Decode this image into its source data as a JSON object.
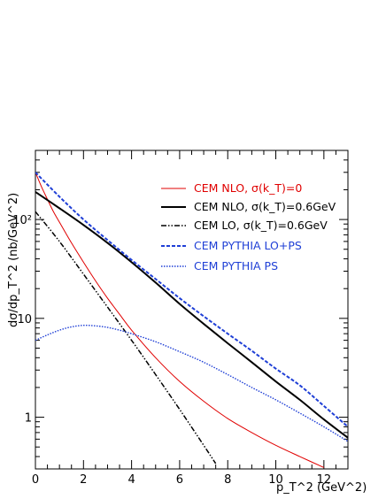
{
  "chart_data": {
    "type": "line",
    "title": "",
    "xlabel": "p_T^2 (GeV^2)",
    "ylabel": "dσ/dp_T^2 (nb/GeV^2)",
    "x_scale": "linear",
    "y_scale": "log",
    "xlim": [
      0,
      13
    ],
    "ylim": [
      0.3,
      500
    ],
    "x_ticks": [
      0,
      2,
      4,
      6,
      8,
      10,
      12
    ],
    "x_tick_labels": [
      "0",
      "2",
      "4",
      "6",
      "8",
      "10",
      "12"
    ],
    "y_ticks": [
      1,
      10,
      100
    ],
    "y_tick_labels": [
      "1",
      "10",
      "10²"
    ],
    "legend_position": "top-right",
    "grid": false,
    "series": [
      {
        "name": "CEM NLO, σ(k_T)=0",
        "color": "#e00000",
        "style": "solid",
        "x": [
          0,
          0.25,
          0.5,
          0.75,
          1,
          1.5,
          2,
          2.5,
          3,
          3.5,
          4,
          5,
          6,
          7,
          8,
          9,
          10,
          11,
          12
        ],
        "y": [
          300,
          215,
          160,
          120,
          94,
          58,
          37,
          24,
          16,
          11,
          7.6,
          4.0,
          2.3,
          1.45,
          0.97,
          0.7,
          0.52,
          0.4,
          0.31
        ]
      },
      {
        "name": "CEM NLO, σ(k_T)=0.6GeV",
        "color": "#000000",
        "style": "solid-thick",
        "x": [
          0,
          1,
          2,
          3,
          4,
          5,
          6,
          7,
          8,
          9,
          10,
          11,
          12,
          13
        ],
        "y": [
          190,
          130,
          88,
          58,
          37,
          23,
          14,
          8.8,
          5.6,
          3.6,
          2.3,
          1.5,
          0.95,
          0.62
        ]
      },
      {
        "name": "CEM LO, σ(k_T)=0.6GeV",
        "color": "#000000",
        "style": "dash-dot",
        "x": [
          0,
          1,
          2,
          3,
          4,
          5,
          6,
          7,
          7.5
        ],
        "y": [
          120,
          60,
          28,
          13,
          6.0,
          2.7,
          1.2,
          0.52,
          0.34
        ]
      },
      {
        "name": "CEM PYTHIA LO+PS",
        "color": "#1f3fd6",
        "style": "dashed",
        "x": [
          0,
          1,
          2,
          3,
          4,
          5,
          6,
          7,
          8,
          9,
          10,
          11,
          12,
          13
        ],
        "y": [
          300,
          170,
          100,
          62,
          39,
          25,
          16,
          10.5,
          7.0,
          4.7,
          3.1,
          2.1,
          1.3,
          0.8
        ]
      },
      {
        "name": "CEM PYTHIA PS",
        "color": "#1f3fd6",
        "style": "dotted",
        "x": [
          0,
          0.5,
          1,
          1.5,
          2,
          2.5,
          3,
          3.5,
          4,
          5,
          6,
          7,
          8,
          9,
          10,
          11,
          12,
          13
        ],
        "y": [
          6.0,
          6.8,
          7.6,
          8.2,
          8.5,
          8.4,
          8.1,
          7.6,
          7.0,
          5.8,
          4.6,
          3.6,
          2.7,
          2.0,
          1.5,
          1.1,
          0.8,
          0.57
        ]
      }
    ]
  }
}
